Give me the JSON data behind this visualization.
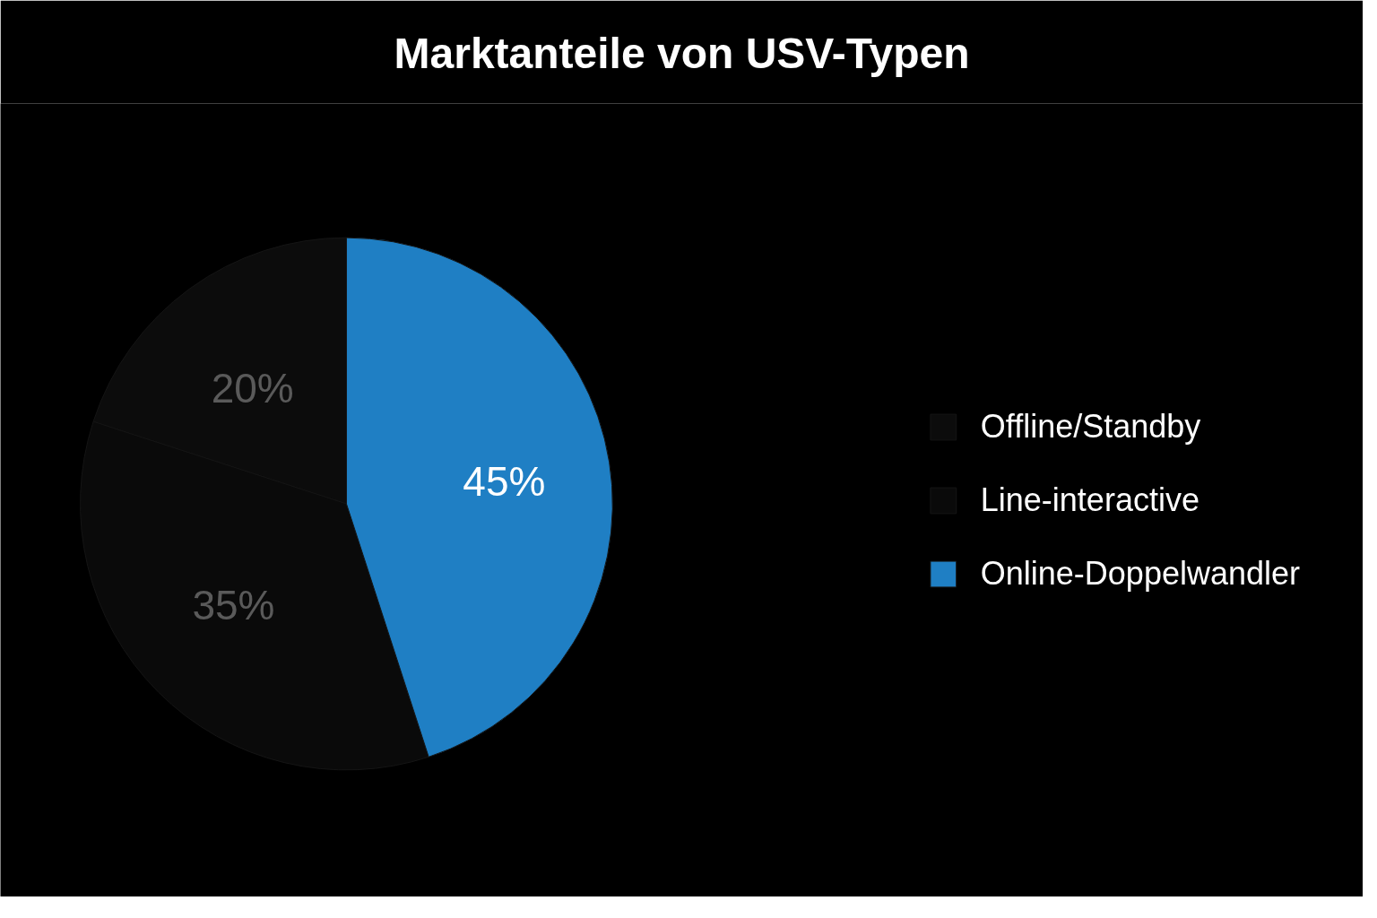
{
  "chart_data": {
    "type": "pie",
    "title": "Marktanteile von USV-Typen",
    "categories": [
      "Offline/Standby",
      "Line-interactive",
      "Online-Doppelwandler"
    ],
    "values": [
      20,
      35,
      45
    ],
    "colors": [
      "#0c0c0c",
      "#0a0a0a",
      "#1f7fc4"
    ],
    "value_labels": [
      "20%",
      "35%",
      "45%"
    ],
    "legend": "right"
  }
}
